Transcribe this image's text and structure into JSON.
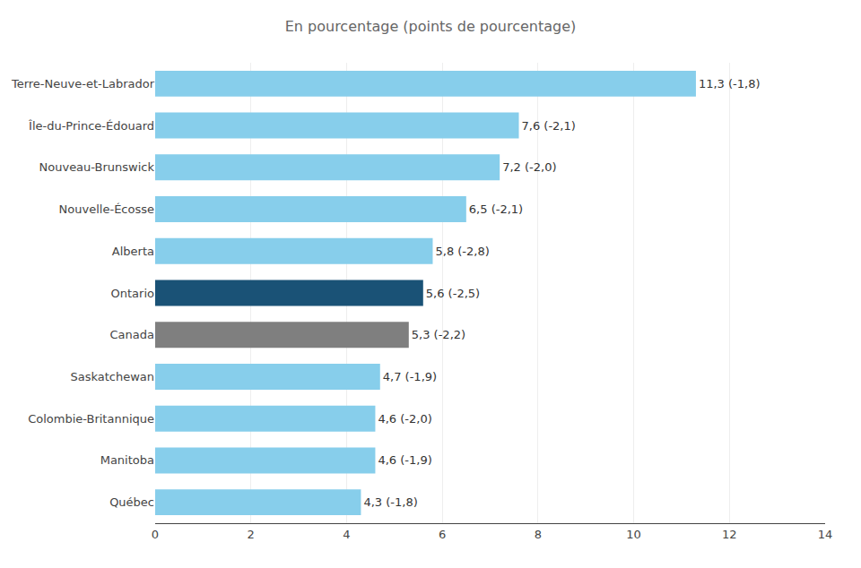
{
  "chart_data": {
    "type": "bar",
    "orientation": "horizontal",
    "title": "En pourcentage (points de pourcentage)",
    "categories": [
      "Terre-Neuve-et-Labrador",
      "Île-du-Prince-Édouard",
      "Nouveau-Brunswick",
      "Nouvelle-Écosse",
      "Alberta",
      "Ontario",
      "Canada",
      "Saskatchewan",
      "Colombie-Britannique",
      "Manitoba",
      "Québec"
    ],
    "values": [
      11.3,
      7.6,
      7.2,
      6.5,
      5.8,
      5.6,
      5.3,
      4.7,
      4.6,
      4.6,
      4.3
    ],
    "value_labels": [
      "11,3 (-1,8)",
      "7,6 (-2,1)",
      "7,2 (-2,0)",
      "6,5 (-2,1)",
      "5,8 (-2,8)",
      "5,6 (-2,5)",
      "5,3 (-2,2)",
      "4,7 (-1,9)",
      "4,6 (-2,0)",
      "4,6 (-1,9)",
      "4,3 (-1,8)"
    ],
    "data_labels": true,
    "colors": [
      "#87CEEB",
      "#87CEEB",
      "#87CEEB",
      "#87CEEB",
      "#87CEEB",
      "#1A5276",
      "#7F7F7F",
      "#87CEEB",
      "#87CEEB",
      "#87CEEB",
      "#87CEEB"
    ],
    "xlim": [
      0,
      14
    ],
    "xticks": [
      0,
      2,
      4,
      6,
      8,
      10,
      12,
      14
    ],
    "grid": true
  }
}
